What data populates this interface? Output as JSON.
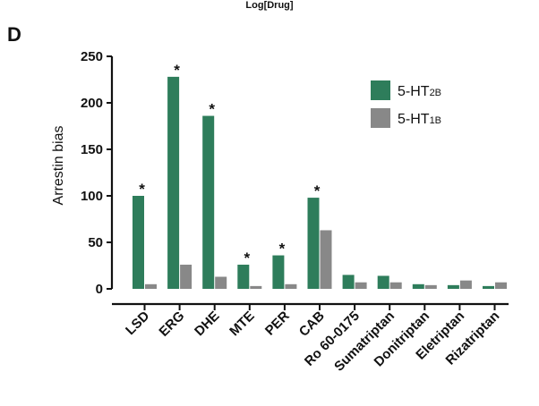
{
  "header": {
    "label": "Log[Drug]"
  },
  "panel": {
    "letter": "D"
  },
  "chart_data": {
    "type": "bar",
    "title": "",
    "xlabel": "",
    "ylabel": "Arrestin bias",
    "ylim": [
      0,
      250
    ],
    "yticks": [
      0,
      50,
      100,
      150,
      200,
      250
    ],
    "categories": [
      "LSD",
      "ERG",
      "DHE",
      "MTE",
      "PER",
      "CAB",
      "Ro 60-0175",
      "Sumatriptan",
      "Donitriptan",
      "Eletriptan",
      "Rizatriptan"
    ],
    "series": [
      {
        "name": "5-HT2B",
        "name_main": "5-HT",
        "name_sub": "2B",
        "color": "#2e7d5b",
        "values": [
          100,
          228,
          186,
          26,
          36,
          98,
          15,
          14,
          5,
          4,
          3
        ]
      },
      {
        "name": "5-HT1B",
        "name_main": "5-HT",
        "name_sub": "1B",
        "color": "#888888",
        "values": [
          5,
          26,
          13,
          3,
          5,
          63,
          7,
          7,
          4,
          9,
          7
        ]
      }
    ],
    "significance_marker": "*",
    "significant": [
      true,
      true,
      true,
      true,
      true,
      true,
      false,
      false,
      false,
      false,
      false
    ],
    "legend_position": "top-right"
  }
}
